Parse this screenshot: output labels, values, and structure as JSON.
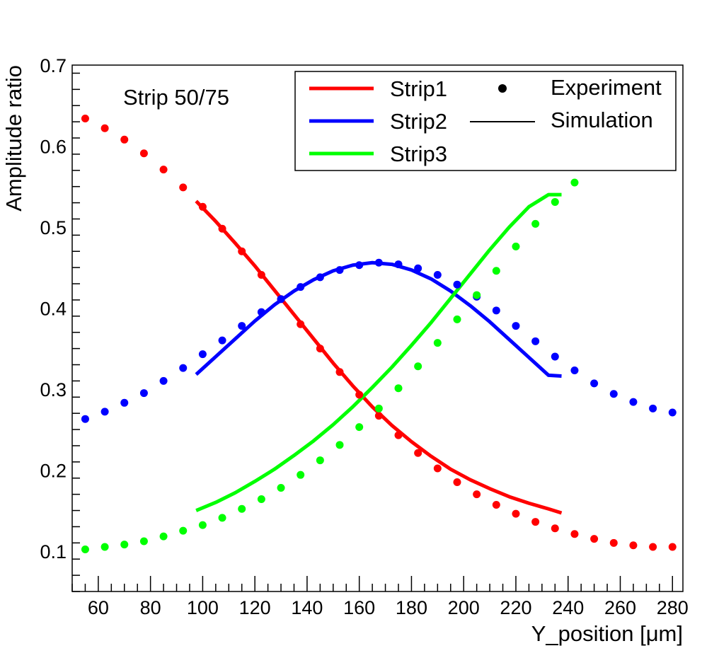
{
  "chart_data": {
    "type": "line",
    "title": "",
    "annotation": "Strip 50/75",
    "xlabel": "Y_position [μm]",
    "ylabel": "Amplitude ratio",
    "xlim": [
      50,
      284
    ],
    "ylim": [
      0.05,
      0.7
    ],
    "xticks": [
      60,
      80,
      100,
      120,
      140,
      160,
      180,
      200,
      220,
      240,
      260,
      280
    ],
    "yticks": [
      0.1,
      0.2,
      0.3,
      0.4,
      0.5,
      0.6,
      0.7
    ],
    "grid": false,
    "legend_position": "top-right",
    "colors": {
      "Strip1": "#ff0000",
      "Strip2": "#0000ff",
      "Strip3": "#00ff00"
    },
    "experiment_x": [
      55,
      62.5,
      70,
      77.5,
      85,
      92.5,
      100,
      107.5,
      115,
      122.5,
      130,
      137.5,
      145,
      152.5,
      160,
      167.5,
      175,
      182.5,
      190,
      197.5,
      205,
      212.5,
      220,
      227.5,
      235,
      242.5,
      250,
      257.5,
      265,
      272.5,
      280
    ],
    "simulation_x": [
      97.5,
      105,
      112.5,
      120,
      127.5,
      135,
      142.5,
      150,
      157.5,
      165,
      172.5,
      180,
      187.5,
      195,
      202.5,
      210,
      217.5,
      225,
      232.5,
      237.5
    ],
    "series": [
      {
        "name": "Strip1",
        "experiment": [
          0.634,
          0.622,
          0.608,
          0.591,
          0.571,
          0.549,
          0.525,
          0.498,
          0.47,
          0.441,
          0.411,
          0.38,
          0.35,
          0.321,
          0.293,
          0.267,
          0.243,
          0.221,
          0.202,
          0.185,
          0.17,
          0.157,
          0.146,
          0.136,
          0.128,
          0.121,
          0.115,
          0.11,
          0.107,
          0.105,
          0.105
        ],
        "simulation": [
          0.532,
          0.507,
          0.48,
          0.452,
          0.422,
          0.392,
          0.362,
          0.332,
          0.304,
          0.278,
          0.255,
          0.235,
          0.217,
          0.201,
          0.188,
          0.177,
          0.167,
          0.159,
          0.152,
          0.147
        ]
      },
      {
        "name": "Strip2",
        "experiment": [
          0.263,
          0.272,
          0.283,
          0.295,
          0.31,
          0.326,
          0.343,
          0.36,
          0.378,
          0.395,
          0.411,
          0.426,
          0.438,
          0.447,
          0.453,
          0.456,
          0.454,
          0.449,
          0.441,
          0.429,
          0.414,
          0.397,
          0.378,
          0.359,
          0.34,
          0.323,
          0.307,
          0.294,
          0.284,
          0.276,
          0.271
        ],
        "simulation": [
          0.318,
          0.34,
          0.362,
          0.384,
          0.404,
          0.421,
          0.435,
          0.446,
          0.453,
          0.456,
          0.454,
          0.447,
          0.436,
          0.421,
          0.403,
          0.383,
          0.361,
          0.339,
          0.317,
          0.316
        ]
      },
      {
        "name": "Strip3",
        "experiment": [
          0.102,
          0.105,
          0.108,
          0.112,
          0.118,
          0.125,
          0.132,
          0.141,
          0.152,
          0.164,
          0.178,
          0.194,
          0.212,
          0.231,
          0.253,
          0.276,
          0.301,
          0.328,
          0.357,
          0.386,
          0.416,
          0.446,
          0.476,
          0.504,
          0.531,
          0.555,
          null,
          null,
          null,
          null,
          null
        ],
        "simulation": [
          0.15,
          0.16,
          0.172,
          0.186,
          0.201,
          0.218,
          0.236,
          0.256,
          0.278,
          0.302,
          0.327,
          0.354,
          0.382,
          0.412,
          0.442,
          0.472,
          0.5,
          0.525,
          0.54,
          0.54
        ]
      }
    ]
  },
  "legend": {
    "entries": [
      {
        "label": "Strip1",
        "style": "line",
        "color": "#ff0000"
      },
      {
        "label": "Strip2",
        "style": "line",
        "color": "#0000ff"
      },
      {
        "label": "Strip3",
        "style": "line",
        "color": "#00ff00"
      },
      {
        "label": "Experiment",
        "style": "marker",
        "color": "#000000"
      },
      {
        "label": "Simulation",
        "style": "line",
        "color": "#000000"
      }
    ]
  }
}
